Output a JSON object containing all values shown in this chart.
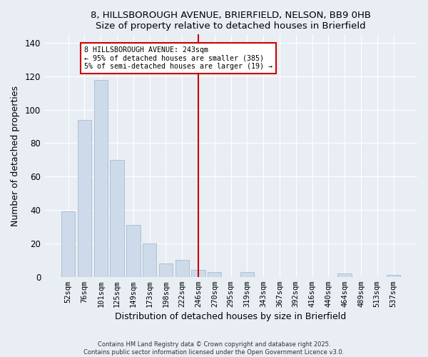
{
  "title": "8, HILLSBOROUGH AVENUE, BRIERFIELD, NELSON, BB9 0HB",
  "subtitle": "Size of property relative to detached houses in Brierfield",
  "xlabel": "Distribution of detached houses by size in Brierfield",
  "ylabel": "Number of detached properties",
  "bar_labels": [
    "52sqm",
    "76sqm",
    "101sqm",
    "125sqm",
    "149sqm",
    "173sqm",
    "198sqm",
    "222sqm",
    "246sqm",
    "270sqm",
    "295sqm",
    "319sqm",
    "343sqm",
    "367sqm",
    "392sqm",
    "416sqm",
    "440sqm",
    "464sqm",
    "489sqm",
    "513sqm",
    "537sqm"
  ],
  "bar_values": [
    39,
    94,
    118,
    70,
    31,
    20,
    8,
    10,
    4,
    3,
    0,
    3,
    0,
    0,
    0,
    0,
    0,
    2,
    0,
    0,
    1
  ],
  "bar_color": "#ccdaea",
  "bar_edge_color": "#aabccc",
  "vline_x": 8,
  "vline_color": "#cc0000",
  "annotation_title": "8 HILLSBOROUGH AVENUE: 243sqm",
  "annotation_line1": "← 95% of detached houses are smaller (385)",
  "annotation_line2": "5% of semi-detached houses are larger (19) →",
  "annotation_box_color": "#ffffff",
  "annotation_border_color": "#cc0000",
  "ylim": [
    0,
    145
  ],
  "yticks": [
    0,
    20,
    40,
    60,
    80,
    100,
    120,
    140
  ],
  "footer1": "Contains HM Land Registry data © Crown copyright and database right 2025.",
  "footer2": "Contains public sector information licensed under the Open Government Licence v3.0.",
  "bg_color": "#e8eef4",
  "plot_bg_color": "#e8eef4",
  "grid_color": "#ffffff"
}
